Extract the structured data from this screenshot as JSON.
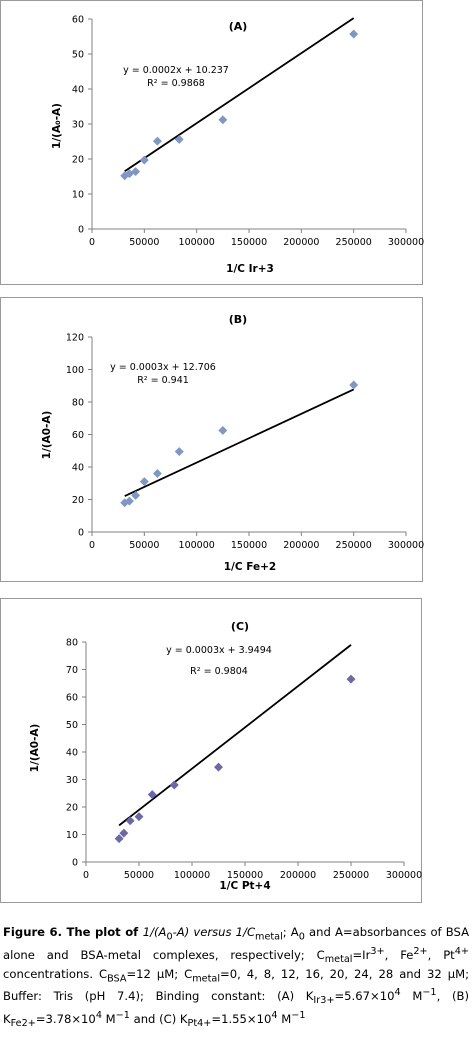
{
  "chart_data": [
    {
      "type": "scatter",
      "title": "(A)",
      "xlabel": "1/C  Ir+3",
      "ylabel": "1/(A₀-A)",
      "xlim": [
        0,
        300000
      ],
      "ylim": [
        0,
        60
      ],
      "xticks": [
        "0",
        "50000",
        "100000",
        "150000",
        "200000",
        "250000",
        "300000"
      ],
      "yticks": [
        "0",
        "10",
        "20",
        "30",
        "40",
        "50",
        "60"
      ],
      "points": [
        {
          "x": 31250,
          "y": 15.2
        },
        {
          "x": 35714,
          "y": 15.8
        },
        {
          "x": 41667,
          "y": 16.4
        },
        {
          "x": 50000,
          "y": 19.7
        },
        {
          "x": 62500,
          "y": 25.1
        },
        {
          "x": 83333,
          "y": 25.6
        },
        {
          "x": 125000,
          "y": 31.2
        },
        {
          "x": 250000,
          "y": 55.7
        }
      ],
      "trendline": {
        "slope": 0.0002,
        "intercept": 10.237,
        "x_from": 31250,
        "x_to": 250000
      },
      "equation": "y = 0.0002x + 10.237",
      "r2": "R² = 0.9868",
      "marker_color": "#7f97c2",
      "grid": false,
      "legend": "none"
    },
    {
      "type": "scatter",
      "title": "(B)",
      "xlabel": "1/C  Fe+2",
      "ylabel": "1/(A0-A)",
      "xlim": [
        0,
        300000
      ],
      "ylim": [
        0,
        120
      ],
      "xticks": [
        "0",
        "50000",
        "100000",
        "150000",
        "200000",
        "250000",
        "300000"
      ],
      "yticks": [
        "0",
        "20",
        "40",
        "60",
        "80",
        "100",
        "120"
      ],
      "points": [
        {
          "x": 31250,
          "y": 18.0
        },
        {
          "x": 35714,
          "y": 19.0
        },
        {
          "x": 41667,
          "y": 22.5
        },
        {
          "x": 50000,
          "y": 31.0
        },
        {
          "x": 62500,
          "y": 36.0
        },
        {
          "x": 83333,
          "y": 49.5
        },
        {
          "x": 125000,
          "y": 62.5
        },
        {
          "x": 250000,
          "y": 90.5
        }
      ],
      "trendline": {
        "slope": 0.0003,
        "intercept": 12.706,
        "x_from": 31250,
        "x_to": 250000
      },
      "equation": "y = 0.0003x + 12.706",
      "r2": "R² = 0.941",
      "marker_color": "#7f97c2",
      "grid": false,
      "legend": "none"
    },
    {
      "type": "scatter",
      "title": "(C)",
      "xlabel": "1/C  Pt+4",
      "ylabel": "1/(A0-A)",
      "xlim": [
        0,
        300000
      ],
      "ylim": [
        0,
        80
      ],
      "xticks": [
        "0",
        "50000",
        "100000",
        "150000",
        "200000",
        "250000",
        "300000"
      ],
      "yticks": [
        "0",
        "10",
        "20",
        "30",
        "40",
        "50",
        "60",
        "70",
        "80"
      ],
      "points": [
        {
          "x": 31250,
          "y": 8.5
        },
        {
          "x": 35714,
          "y": 10.5
        },
        {
          "x": 41667,
          "y": 15.0
        },
        {
          "x": 50000,
          "y": 16.5
        },
        {
          "x": 62500,
          "y": 24.5
        },
        {
          "x": 83333,
          "y": 28.0
        },
        {
          "x": 125000,
          "y": 34.5
        },
        {
          "x": 250000,
          "y": 66.5
        }
      ],
      "trendline": {
        "slope": 0.0003,
        "intercept": 3.9494,
        "x_from": 31250,
        "x_to": 250000
      },
      "equation": "y = 0.0003x + 3.9494",
      "r2": "R² = 0.9804",
      "marker_color": "#6b68a8",
      "grid": false,
      "legend": "none"
    }
  ],
  "caption": {
    "p01": "Figure 6. The plot of ",
    "p02": "1/(A",
    "p03": "0",
    "p04": "-A) versus 1/C",
    "p05": "metal",
    "p06": "; A",
    "p07": "0",
    "p08": " and A=absorbances of BSA alone and BSA-metal complexes, respectively; C",
    "p09": "metal",
    "p10": "=Ir",
    "p11": "3+",
    "p12": ", Fe",
    "p13": "2+",
    "p14": ", Pt",
    "p15": "4+",
    "p16": " concentrations. C",
    "p17": "BSA",
    "p18": "=12 μM; C",
    "p19": "metal",
    "p20": "=0, 4, 8, 12, 16, 20, 24, 28 and 32 μM; Buffer: Tris (pH 7.4); Binding constant: (A) K",
    "p21": "Ir3+",
    "p22": "=5.67×10",
    "p23": "4",
    "p24": " M",
    "p25": "−1",
    "p26": ", (B) K",
    "p27": "Fe2+",
    "p28": "=3.78×10",
    "p29": "4",
    "p30": " M",
    "p31": "−1",
    "p32": " and (C) K",
    "p33": "Pt4+",
    "p34": "=1.55×10",
    "p35": "4",
    "p36": " M",
    "p37": "−1"
  }
}
